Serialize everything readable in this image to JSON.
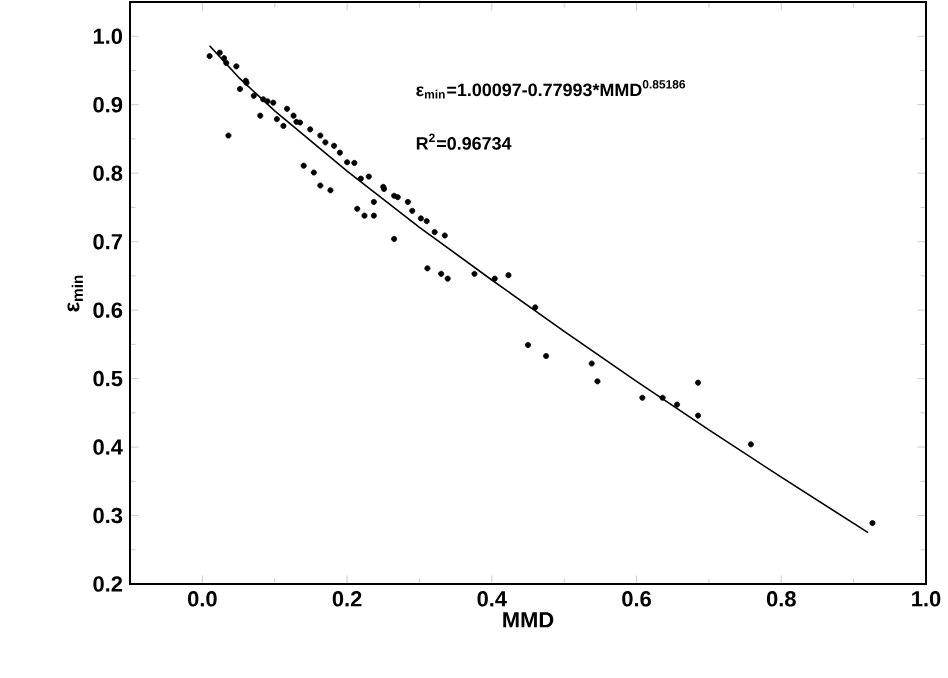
{
  "chart_data": {
    "type": "scatter",
    "xlabel": "MMD",
    "ylabel": "ε$_{min}$",
    "annotations": [
      "ε$_{min}$=1.00097-0.77993*MMD$^{0.85186}$",
      "R$^{2}$=0.96734"
    ],
    "xlim": [
      -0.1,
      1.0
    ],
    "xticks": [
      {
        "value": 0.0,
        "label": "0.0"
      },
      0.2,
      0.4,
      0.6,
      0.8,
      {
        "value": 1.0,
        "label": "1.0"
      }
    ],
    "ylim": [
      0.2,
      1.05
    ],
    "yticks": [
      0.2,
      0.3,
      0.4,
      0.5,
      0.6,
      0.7,
      0.8,
      0.9,
      {
        "value": 1.0,
        "label": "1.0"
      }
    ],
    "series": [
      {
        "type": "scatter",
        "color": "#000000",
        "marker": "circle",
        "x": [
          0.01,
          0.024,
          0.033,
          0.036,
          0.047,
          0.052,
          0.061,
          0.071,
          0.08,
          0.084,
          0.098,
          0.103,
          0.112,
          0.117,
          0.126,
          0.135,
          0.14,
          0.149,
          0.154,
          0.163,
          0.163,
          0.177,
          0.182,
          0.2,
          0.214,
          0.219,
          0.224,
          0.237,
          0.237,
          0.251,
          0.265,
          0.265,
          0.284,
          0.302,
          0.321,
          0.335,
          0.311,
          0.33,
          0.339,
          0.376,
          0.404,
          0.423,
          0.46,
          0.45,
          0.475,
          0.538,
          0.546,
          0.608,
          0.636,
          0.656,
          0.685,
          0.685,
          0.758,
          0.926,
          0.03,
          0.06,
          0.09,
          0.13,
          0.17,
          0.19,
          0.21,
          0.23,
          0.25,
          0.27,
          0.29,
          0.31
        ],
        "values": [
          0.971,
          0.976,
          0.961,
          0.855,
          0.956,
          0.923,
          0.932,
          0.913,
          0.884,
          0.908,
          0.903,
          0.879,
          0.869,
          0.894,
          0.884,
          0.874,
          0.811,
          0.864,
          0.801,
          0.782,
          0.855,
          0.775,
          0.84,
          0.816,
          0.748,
          0.792,
          0.738,
          0.738,
          0.758,
          0.777,
          0.704,
          0.767,
          0.758,
          0.734,
          0.714,
          0.709,
          0.661,
          0.653,
          0.646,
          0.653,
          0.646,
          0.651,
          0.604,
          0.549,
          0.533,
          0.522,
          0.496,
          0.472,
          0.472,
          0.462,
          0.494,
          0.446,
          0.404,
          0.289,
          0.968,
          0.935,
          0.905,
          0.875,
          0.845,
          0.83,
          0.815,
          0.795,
          0.78,
          0.765,
          0.745,
          0.73
        ]
      },
      {
        "type": "line",
        "color": "#000000",
        "marker": "none",
        "line_style": "solid",
        "x": [
          0.01,
          0.05,
          0.1,
          0.2,
          0.3,
          0.4,
          0.5,
          0.6,
          0.7,
          0.8,
          0.92
        ],
        "values": [
          0.986,
          0.94,
          0.891,
          0.803,
          0.721,
          0.644,
          0.569,
          0.496,
          0.425,
          0.356,
          0.275
        ]
      }
    ]
  }
}
